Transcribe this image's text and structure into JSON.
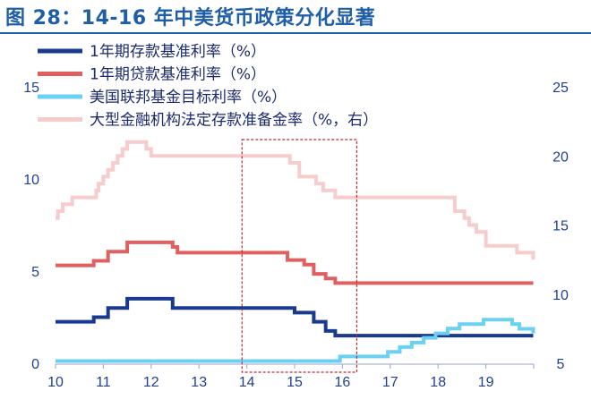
{
  "title": "图 28：14-16 年中美货币政策分化显著",
  "colors": {
    "deposit": "#1a3a8f",
    "loan": "#e06060",
    "fed": "#6ad0f4",
    "rrr": "#f6cccc",
    "axis": "#1f3f8f",
    "highlight": "#c0282d"
  },
  "chart_data": {
    "type": "line",
    "x_ticks": [
      "10",
      "11",
      "12",
      "13",
      "14",
      "15",
      "16",
      "17",
      "18",
      "19"
    ],
    "xlim": [
      10,
      20
    ],
    "y_left": {
      "ticks": [
        "0",
        "5",
        "10",
        "15"
      ],
      "range": [
        0,
        15
      ]
    },
    "y_right": {
      "ticks": [
        "5",
        "10",
        "15",
        "20",
        "25"
      ],
      "range": [
        5,
        25
      ]
    },
    "legend_position": "top-left",
    "highlight_region": {
      "x_start": 13.9,
      "x_end": 16.3,
      "style": "dashed"
    },
    "series": [
      {
        "name": "1年期存款基准利率（%）",
        "color_key": "deposit",
        "axis": "left",
        "step": true,
        "points": [
          [
            10,
            2.25
          ],
          [
            10.8,
            2.5
          ],
          [
            11.1,
            3.0
          ],
          [
            11.5,
            3.5
          ],
          [
            12.45,
            3.0
          ],
          [
            12.55,
            3.0
          ],
          [
            15.0,
            2.75
          ],
          [
            15.4,
            2.25
          ],
          [
            15.65,
            1.75
          ],
          [
            15.85,
            1.5
          ],
          [
            19.99,
            1.5
          ]
        ]
      },
      {
        "name": "1年期贷款基准利率（%）",
        "color_key": "loan",
        "axis": "left",
        "step": true,
        "points": [
          [
            10,
            5.31
          ],
          [
            10.8,
            5.56
          ],
          [
            11.1,
            6.06
          ],
          [
            11.5,
            6.56
          ],
          [
            12.45,
            6.31
          ],
          [
            12.55,
            6.0
          ],
          [
            14.85,
            5.6
          ],
          [
            15.2,
            5.35
          ],
          [
            15.4,
            4.85
          ],
          [
            15.65,
            4.6
          ],
          [
            15.85,
            4.35
          ],
          [
            19.99,
            4.35
          ]
        ]
      },
      {
        "name": "美国联邦基金目标利率（%）",
        "color_key": "fed",
        "axis": "left",
        "step": true,
        "points": [
          [
            10,
            0.12
          ],
          [
            15.95,
            0.37
          ],
          [
            16.95,
            0.62
          ],
          [
            17.2,
            0.88
          ],
          [
            17.45,
            1.12
          ],
          [
            17.7,
            1.38
          ],
          [
            17.95,
            1.62
          ],
          [
            18.2,
            1.88
          ],
          [
            18.45,
            2.12
          ],
          [
            18.95,
            2.37
          ],
          [
            19.55,
            2.12
          ],
          [
            19.7,
            1.87
          ],
          [
            19.99,
            1.62
          ]
        ]
      },
      {
        "name": "大型金融机构法定存款准备金率（%，右）",
        "color_key": "rrr",
        "axis": "right",
        "step": true,
        "points": [
          [
            10,
            15.5
          ],
          [
            10.05,
            16.0
          ],
          [
            10.15,
            16.5
          ],
          [
            10.35,
            17.0
          ],
          [
            10.85,
            17.5
          ],
          [
            10.9,
            18.0
          ],
          [
            11.0,
            18.5
          ],
          [
            11.1,
            19.0
          ],
          [
            11.2,
            19.5
          ],
          [
            11.3,
            20.0
          ],
          [
            11.4,
            20.5
          ],
          [
            11.5,
            21.0
          ],
          [
            11.9,
            20.5
          ],
          [
            12.0,
            20.0
          ],
          [
            14.9,
            19.5
          ],
          [
            15.1,
            18.5
          ],
          [
            15.45,
            18.0
          ],
          [
            15.6,
            17.5
          ],
          [
            15.85,
            17.0
          ],
          [
            18.35,
            16.0
          ],
          [
            18.55,
            15.5
          ],
          [
            18.65,
            15.0
          ],
          [
            18.8,
            14.5
          ],
          [
            19.0,
            13.5
          ],
          [
            19.65,
            13.0
          ],
          [
            19.99,
            12.5
          ]
        ]
      }
    ]
  }
}
